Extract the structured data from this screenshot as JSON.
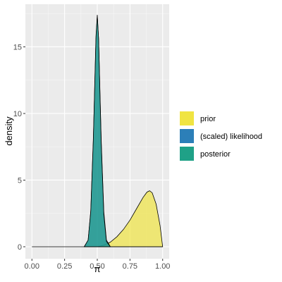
{
  "chart_data": {
    "type": "area",
    "xlabel": "π",
    "ylabel": "density",
    "xlim": [
      -0.05,
      1.05
    ],
    "ylim": [
      -0.9,
      18.2
    ],
    "x_ticks": [
      0,
      0.25,
      0.5,
      0.75,
      1
    ],
    "x_tick_labels": [
      "0.00",
      "0.25",
      "0.50",
      "0.75",
      "1.00"
    ],
    "y_ticks": [
      0,
      5,
      10,
      15
    ],
    "y_tick_labels": [
      "0",
      "5",
      "10",
      "15"
    ],
    "grid": true,
    "legend_position": "right",
    "series": [
      {
        "name": "prior",
        "color": "#f0e442",
        "x": [
          0.5,
          0.55,
          0.6,
          0.65,
          0.7,
          0.75,
          0.8,
          0.85,
          0.88,
          0.9,
          0.92,
          0.95,
          0.98,
          1.0
        ],
        "values": [
          0.0,
          0.12,
          0.35,
          0.75,
          1.3,
          2.0,
          2.85,
          3.7,
          4.1,
          4.2,
          4.05,
          3.2,
          1.6,
          0.0
        ]
      },
      {
        "name": "(scaled) likelihood",
        "color": "#2c7fb8",
        "x": [
          0.4,
          0.43,
          0.45,
          0.47,
          0.48,
          0.49,
          0.5,
          0.51,
          0.52,
          0.53,
          0.55,
          0.57,
          0.6
        ],
        "values": [
          0.0,
          0.5,
          2.6,
          8.0,
          11.8,
          15.6,
          17.3,
          15.6,
          11.8,
          8.0,
          2.6,
          0.5,
          0.0
        ]
      },
      {
        "name": "posterior",
        "color": "#1fa187",
        "x": [
          0.4,
          0.43,
          0.45,
          0.47,
          0.48,
          0.49,
          0.5,
          0.51,
          0.52,
          0.53,
          0.55,
          0.57,
          0.6
        ],
        "values": [
          0.0,
          0.5,
          2.7,
          8.2,
          12.0,
          15.8,
          17.4,
          15.6,
          11.6,
          7.8,
          2.4,
          0.4,
          0.0
        ]
      }
    ]
  }
}
